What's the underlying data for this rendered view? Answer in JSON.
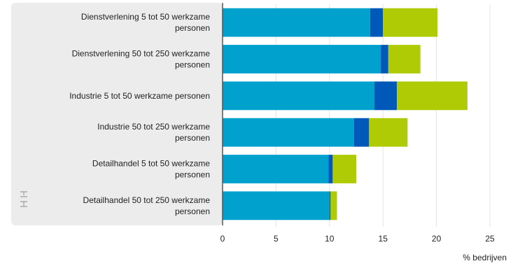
{
  "chart_data": {
    "type": "bar",
    "orientation": "horizontal",
    "stacked": true,
    "categories": [
      [
        "Dienstverlening 5 tot 50 werkzame",
        "personen"
      ],
      [
        "Dienstverlening 50 tot 250 werkzame",
        "personen"
      ],
      [
        "Industrie 5 tot 50 werkzame personen"
      ],
      [
        "Industrie 50 tot 250 werkzame",
        "personen"
      ],
      [
        "Detailhandel 5 tot 50 werkzame",
        "personen"
      ],
      [
        "Detailhandel 50 tot 250 werkzame",
        "personen"
      ]
    ],
    "series": [
      {
        "values": [
          13.8,
          14.8,
          14.2,
          12.3,
          9.9,
          10.0
        ]
      },
      {
        "values": [
          1.2,
          0.7,
          2.1,
          1.4,
          0.4,
          0.1
        ]
      },
      {
        "values": [
          5.1,
          3.0,
          6.6,
          3.6,
          2.2,
          0.6
        ]
      }
    ],
    "colors": [
      "#00a1cd",
      "#0058b8",
      "#afcb05"
    ],
    "xlabel": "% bedrijven",
    "xlim": [
      0,
      25
    ],
    "xticks": [
      0,
      5,
      10,
      15,
      20,
      25
    ],
    "grid": true,
    "logo": "cbs-logo"
  }
}
